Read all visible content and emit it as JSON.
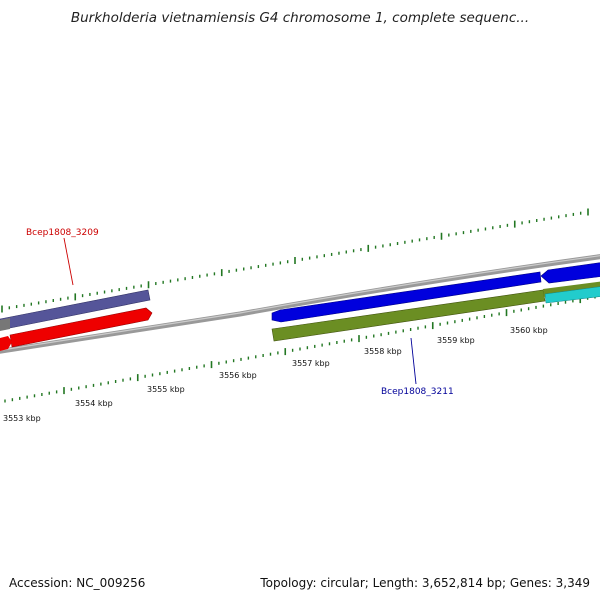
{
  "title": "Burkholderia vietnamiensis G4 chromosome 1, complete sequenc...",
  "footer": {
    "accession": "Accession: NC_009256",
    "stats": "Topology: circular; Length: 3,652,814 bp; Genes: 3,349"
  },
  "genes": [
    {
      "label": "Bcep1808_3209",
      "color": "#cc0000"
    },
    {
      "label": "Bcep1808_3211",
      "color": "#000099"
    }
  ],
  "tick_labels": [
    "3553 kbp",
    "3554 kbp",
    "3555 kbp",
    "3556 kbp",
    "3557 kbp",
    "3558 kbp",
    "3559 kbp",
    "3560 kbp"
  ],
  "colors": {
    "backbone": "#888888",
    "feature_purple": "#555599",
    "feature_red": "#ee0000",
    "feature_blue": "#0000dd",
    "feature_olive": "#6b8e23",
    "feature_cyan": "#22cccc",
    "tick": "#227722"
  }
}
